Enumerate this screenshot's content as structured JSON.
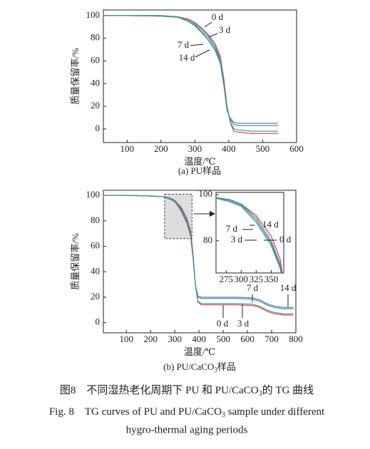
{
  "chart_data": [
    {
      "type": "line",
      "x_label": "温度/℃",
      "y_label": "质量保留率/%",
      "title": "(a) PU样品",
      "xlim": [
        30,
        600
      ],
      "ylim": [
        -12,
        105
      ],
      "xticks": [
        100,
        200,
        300,
        400,
        500,
        600
      ],
      "yticks": [
        0,
        20,
        40,
        60,
        80,
        100
      ],
      "x": [
        30,
        100,
        200,
        250,
        280,
        300,
        320,
        340,
        360,
        375,
        385,
        395,
        405,
        415,
        430,
        470,
        545
      ],
      "series": [
        {
          "name": "0 d",
          "color": "#d6404e",
          "values": [
            100,
            100,
            100,
            99,
            97,
            94,
            89,
            83,
            75,
            64,
            45,
            20,
            5,
            -2,
            -3,
            -4,
            -4
          ]
        },
        {
          "name": "3 d",
          "color": "#3fa37a",
          "values": [
            100,
            100,
            100,
            99,
            96,
            93,
            88,
            82,
            73,
            62,
            43,
            18,
            6,
            0,
            -1,
            -2,
            -2
          ]
        },
        {
          "name": "7 d",
          "color": "#4a78c0",
          "values": [
            100,
            100,
            99.5,
            98.5,
            95,
            92,
            86,
            80,
            71,
            60,
            41,
            17,
            8,
            4,
            3,
            3,
            3
          ]
        },
        {
          "name": "14 d",
          "color": "#4f8f9e",
          "values": [
            100,
            100,
            99.5,
            98.5,
            95,
            91,
            85,
            78,
            69,
            58,
            39,
            16,
            9,
            6,
            5,
            5,
            5
          ]
        }
      ]
    },
    {
      "type": "line",
      "x_label": "温度/℃",
      "y_label": "质量保留率/%",
      "title": [
        "(b) PU/CaCO",
        "3",
        "样品"
      ],
      "xlim": [
        5,
        800
      ],
      "ylim": [
        -8,
        104
      ],
      "xticks": [
        100,
        200,
        300,
        400,
        500,
        600,
        700,
        800
      ],
      "yticks": [
        0,
        20,
        40,
        60,
        80,
        100
      ],
      "x": [
        5,
        100,
        200,
        250,
        280,
        300,
        325,
        350,
        365,
        375,
        385,
        395,
        410,
        450,
        550,
        620,
        650,
        680,
        710,
        750,
        790
      ],
      "series": [
        {
          "name": "0 d",
          "color": "#d6404e",
          "values": [
            100,
            100,
            99.5,
            99,
            98,
            96,
            91,
            82,
            72,
            55,
            30,
            16,
            14,
            14,
            14,
            13.5,
            12,
            9,
            7,
            6,
            6
          ]
        },
        {
          "name": "3 d",
          "color": "#3fa37a",
          "values": [
            100,
            100,
            99.5,
            99,
            98,
            96,
            90,
            80,
            70,
            53,
            30,
            17,
            15,
            15,
            15,
            14.5,
            13,
            10,
            8,
            7,
            7
          ]
        },
        {
          "name": "7 d",
          "color": "#4a78c0",
          "values": [
            100,
            100,
            99.5,
            99,
            97.5,
            95.5,
            89,
            79,
            69,
            52,
            30,
            20,
            19,
            19,
            19,
            18.5,
            17,
            14,
            12,
            11,
            11
          ]
        },
        {
          "name": "14 d",
          "color": "#4f8f9e",
          "values": [
            100,
            100,
            99.5,
            99,
            97,
            95,
            88,
            78,
            68,
            51,
            30,
            21,
            20,
            20,
            20,
            19.5,
            18,
            15,
            13,
            12,
            12
          ]
        }
      ],
      "inset": {
        "xlim": [
          258,
          371
        ],
        "ylim": [
          66,
          101
        ],
        "xticks": [
          275,
          300,
          325,
          350
        ],
        "yticks": [
          80,
          100
        ]
      }
    }
  ],
  "caption_cn": [
    "图8　不同湿热老化周期下 PU 和 PU/CaCO",
    "3",
    "的 TG 曲线"
  ],
  "caption_en": [
    "Fig. 8　TG curves of PU and PU/CaCO",
    "3",
    " sample under different",
    "hygro-thermal aging periods"
  ]
}
